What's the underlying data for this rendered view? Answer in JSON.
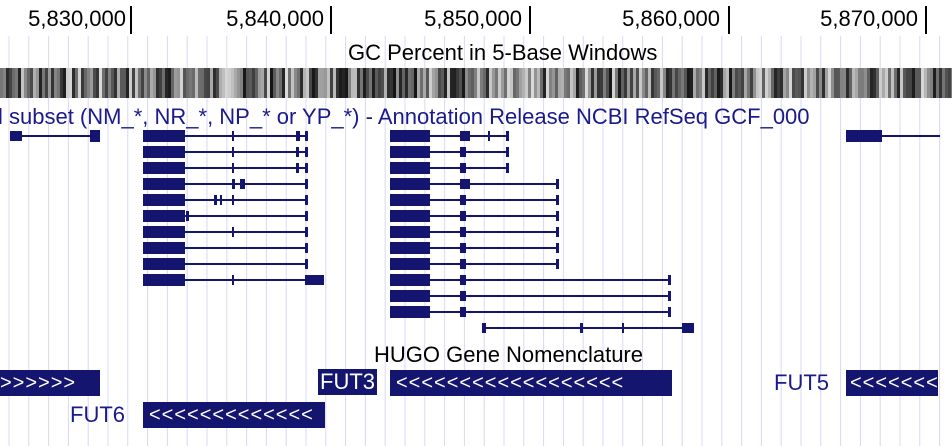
{
  "ruler": {
    "coords": [
      "5,830,000",
      "5,840,000",
      "5,850,000",
      "5,860,000",
      "5,870,000"
    ]
  },
  "tracks": {
    "gc_percent": {
      "label": "GC Percent in 5-Base Windows"
    },
    "refseq": {
      "label": "l subset (NM_*, NR_*, NP_* or YP_*) - Annotation Release NCBI RefSeq GCF_000"
    },
    "hugo": {
      "label": "HUGO Gene Nomenclature"
    }
  },
  "genes": {
    "fut3": {
      "label": "FUT3",
      "strand_glyphs": "<<<<<<<<<<<<<<<<<<"
    },
    "fut5": {
      "label": "FUT5",
      "strand_glyphs": "<<<<<<<"
    },
    "fut6": {
      "label": "FUT6",
      "strand_glyphs": "<<<<<<<<<<<<<"
    },
    "left_partial": {
      "strand_glyphs": ">>>>>>"
    }
  },
  "colors": {
    "gene_fill": "#13156e",
    "track_label": "#1a1a8c",
    "grid_line": "#d8d8f4",
    "label_highlight": "#13156e"
  }
}
